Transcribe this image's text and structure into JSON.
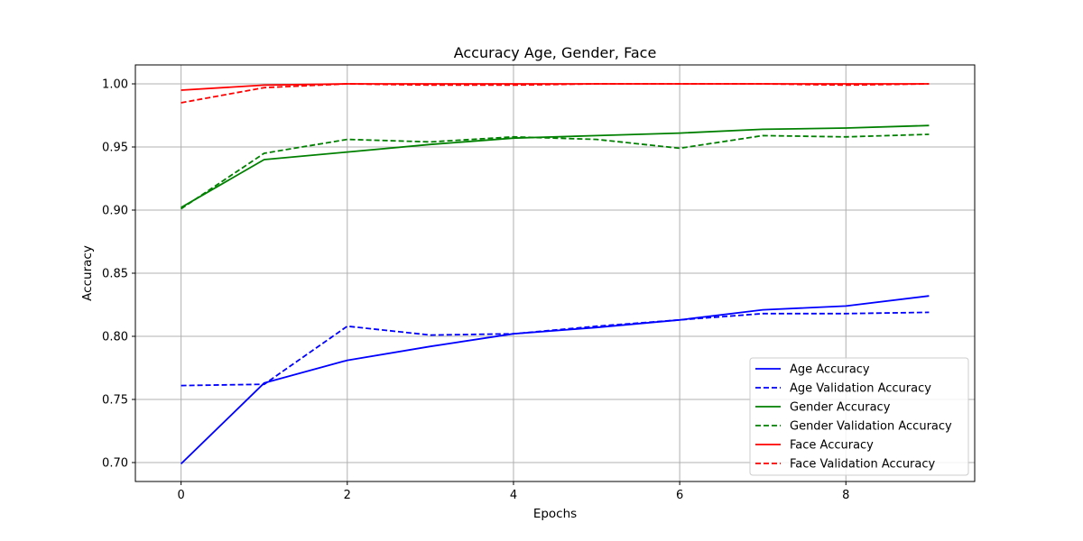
{
  "chart_data": {
    "type": "line",
    "title": "Accuracy Age, Gender, Face",
    "xlabel": "Epochs",
    "ylabel": "Accuracy",
    "xlim": [
      -0.55,
      9.55
    ],
    "ylim": [
      0.685,
      1.015
    ],
    "xticks": [
      0,
      2,
      4,
      6,
      8
    ],
    "yticks": [
      0.7,
      0.75,
      0.8,
      0.85,
      0.9,
      0.95,
      1.0
    ],
    "ytick_labels": [
      "0.70",
      "0.75",
      "0.80",
      "0.85",
      "0.90",
      "0.95",
      "1.00"
    ],
    "grid": true,
    "legend_position": "lower right",
    "x": [
      0,
      1,
      2,
      3,
      4,
      5,
      6,
      7,
      8,
      9
    ],
    "series": [
      {
        "name": "Age Accuracy",
        "color": "#0000ff",
        "style": "solid",
        "values": [
          0.699,
          0.763,
          0.781,
          0.792,
          0.802,
          0.807,
          0.813,
          0.821,
          0.824,
          0.832
        ]
      },
      {
        "name": "Age Validation Accuracy",
        "color": "#0000ff",
        "style": "dashed",
        "values": [
          0.761,
          0.762,
          0.808,
          0.801,
          0.802,
          0.808,
          0.813,
          0.818,
          0.818,
          0.819
        ]
      },
      {
        "name": "Gender Accuracy",
        "color": "#008000",
        "style": "solid",
        "values": [
          0.902,
          0.94,
          0.946,
          0.952,
          0.957,
          0.959,
          0.961,
          0.964,
          0.965,
          0.967
        ]
      },
      {
        "name": "Gender Validation Accuracy",
        "color": "#008000",
        "style": "dashed",
        "values": [
          0.901,
          0.945,
          0.956,
          0.954,
          0.958,
          0.956,
          0.949,
          0.959,
          0.958,
          0.96
        ]
      },
      {
        "name": "Face Accuracy",
        "color": "#ff0000",
        "style": "solid",
        "values": [
          0.995,
          0.999,
          1.0,
          1.0,
          1.0,
          1.0,
          1.0,
          1.0,
          1.0,
          1.0
        ]
      },
      {
        "name": "Face Validation Accuracy",
        "color": "#ff0000",
        "style": "dashed",
        "values": [
          0.985,
          0.997,
          1.0,
          0.999,
          0.999,
          1.0,
          1.0,
          1.0,
          0.999,
          1.0
        ]
      }
    ]
  }
}
